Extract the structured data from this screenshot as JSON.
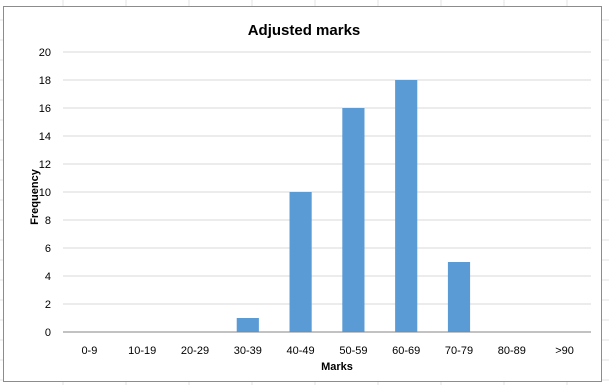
{
  "colors": {
    "bar": "#5b9bd5",
    "gridline": "#d9d9d9",
    "sheet_grid": "#e3e3e3"
  },
  "chart_data": {
    "type": "bar",
    "title": "Adjusted marks",
    "xlabel": "Marks",
    "ylabel": "Frequency",
    "categories": [
      "0-9",
      "10-19",
      "20-29",
      "30-39",
      "40-49",
      "50-59",
      "60-69",
      "70-79",
      "80-89",
      ">90"
    ],
    "values": [
      0,
      0,
      0,
      1,
      10,
      16,
      18,
      5,
      0,
      0
    ],
    "ylim": [
      0,
      20
    ],
    "yticks": [
      "0",
      "2",
      "4",
      "6",
      "8",
      "10",
      "12",
      "14",
      "16",
      "18",
      "20"
    ],
    "grid": true,
    "legend": "none"
  }
}
